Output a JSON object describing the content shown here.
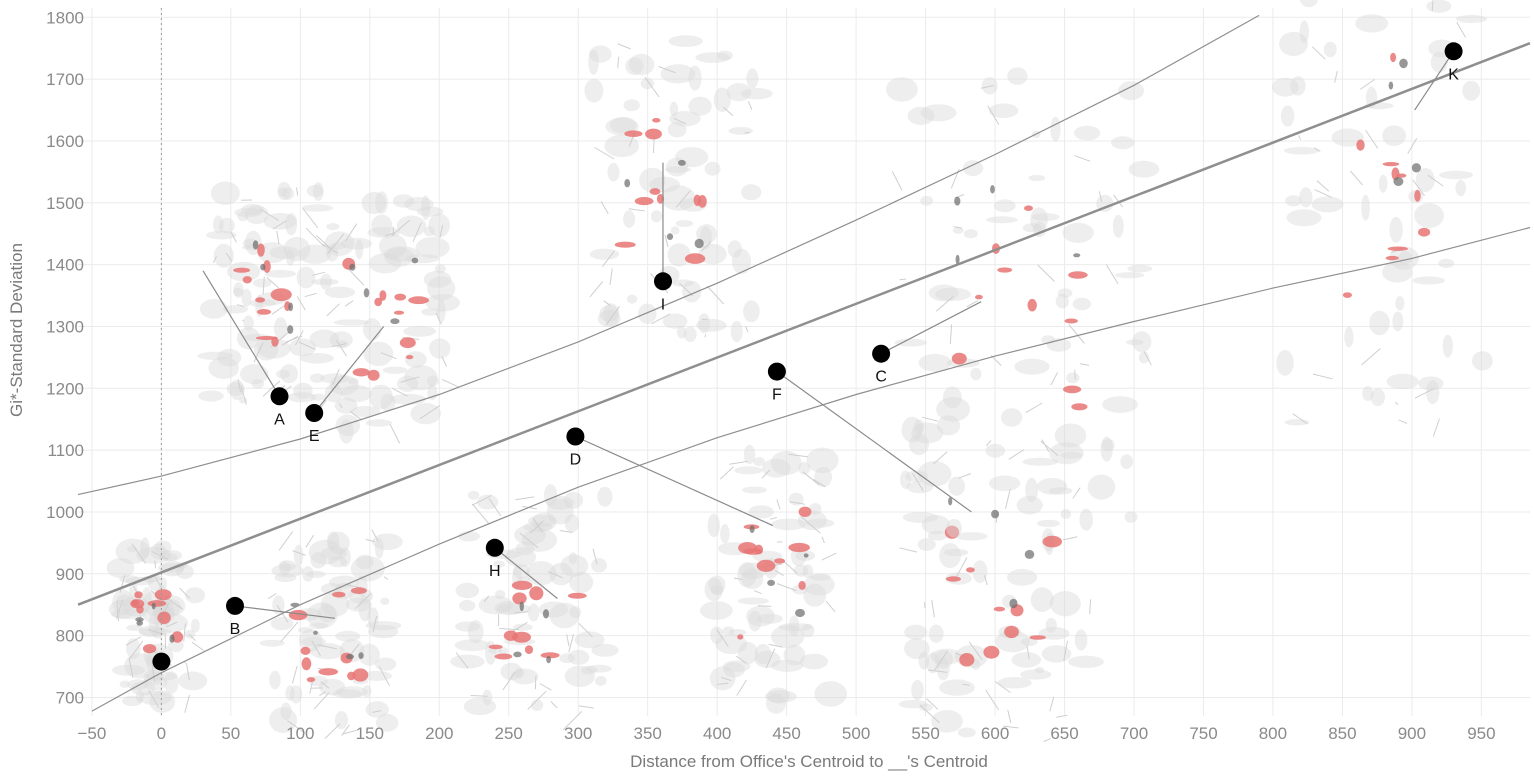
{
  "chart_data": {
    "type": "scatter",
    "xlabel": "Distance from Office's Centroid to __'s Centroid",
    "ylabel": "Gi*-Standard Deviation",
    "xlim": [
      -60,
      985
    ],
    "ylim": [
      670,
      1815
    ],
    "xticks": [
      -50,
      0,
      50,
      100,
      150,
      200,
      250,
      300,
      350,
      400,
      450,
      500,
      550,
      600,
      650,
      700,
      750,
      800,
      850,
      900,
      950
    ],
    "yticks": [
      700,
      800,
      900,
      1000,
      1100,
      1200,
      1300,
      1400,
      1500,
      1600,
      1700,
      1800
    ],
    "grid": true,
    "reference_line_x": 0,
    "regression": {
      "fit": [
        [
          -60,
          850
        ],
        [
          985,
          1758
        ]
      ],
      "upper_band": [
        [
          -60,
          1028
        ],
        [
          0,
          1058
        ],
        [
          100,
          1118
        ],
        [
          200,
          1190
        ],
        [
          300,
          1275
        ],
        [
          400,
          1370
        ],
        [
          500,
          1472
        ],
        [
          600,
          1578
        ],
        [
          700,
          1690
        ],
        [
          790,
          1803
        ]
      ],
      "lower_band": [
        [
          -50,
          678
        ],
        [
          0,
          740
        ],
        [
          100,
          850
        ],
        [
          200,
          948
        ],
        [
          300,
          1040
        ],
        [
          400,
          1120
        ],
        [
          500,
          1190
        ],
        [
          600,
          1252
        ],
        [
          700,
          1308
        ],
        [
          800,
          1362
        ],
        [
          900,
          1410
        ],
        [
          985,
          1460
        ]
      ]
    },
    "points": [
      {
        "label": "",
        "x": 0,
        "y": 758,
        "map_x": -15,
        "map_y": 790
      },
      {
        "label": "A",
        "x": 85,
        "y": 1187,
        "map_x": 30,
        "map_y": 1390
      },
      {
        "label": "B",
        "x": 53,
        "y": 848,
        "map_x": 125,
        "map_y": 828
      },
      {
        "label": "C",
        "x": 518,
        "y": 1256,
        "map_x": 590,
        "map_y": 1340
      },
      {
        "label": "D",
        "x": 298,
        "y": 1122,
        "map_x": 440,
        "map_y": 978
      },
      {
        "label": "E",
        "x": 110,
        "y": 1160,
        "map_x": 160,
        "map_y": 1300
      },
      {
        "label": "F",
        "x": 443,
        "y": 1227,
        "map_x": 583,
        "map_y": 1000
      },
      {
        "label": "H",
        "x": 240,
        "y": 942,
        "map_x": 285,
        "map_y": 860
      },
      {
        "label": "I",
        "x": 361,
        "y": 1373,
        "map_x": 361,
        "map_y": 1565
      },
      {
        "label": "K",
        "x": 930,
        "y": 1745,
        "map_x": 902,
        "map_y": 1650
      }
    ],
    "map_thumbnails": [
      {
        "center": [
          -2,
          820
        ],
        "w": 80,
        "h": 160
      },
      {
        "center": [
          75,
          1350
        ],
        "w": 110,
        "h": 210
      },
      {
        "center": [
          160,
          1310
        ],
        "w": 120,
        "h": 240
      },
      {
        "center": [
          120,
          800
        ],
        "w": 120,
        "h": 200
      },
      {
        "center": [
          270,
          850
        ],
        "w": 140,
        "h": 220
      },
      {
        "center": [
          370,
          1520
        ],
        "w": 170,
        "h": 300
      },
      {
        "center": [
          440,
          900
        ],
        "w": 120,
        "h": 260
      },
      {
        "center": [
          605,
          890
        ],
        "w": 180,
        "h": 320
      },
      {
        "center": [
          620,
          1340
        ],
        "w": 250,
        "h": 460
      },
      {
        "center": [
          880,
          1560
        ],
        "w": 200,
        "h": 520
      }
    ]
  },
  "colors": {
    "background": "#ffffff",
    "grid": "#ebebeb",
    "tick_label": "#8a8a8a",
    "trend_line": "#8f8f8f",
    "band_line": "#8f8f8f",
    "map_base": "#d9d9d9",
    "hotspot": "#e87474",
    "hotspot_dark": "#6b6b6b",
    "point": "#000000"
  }
}
